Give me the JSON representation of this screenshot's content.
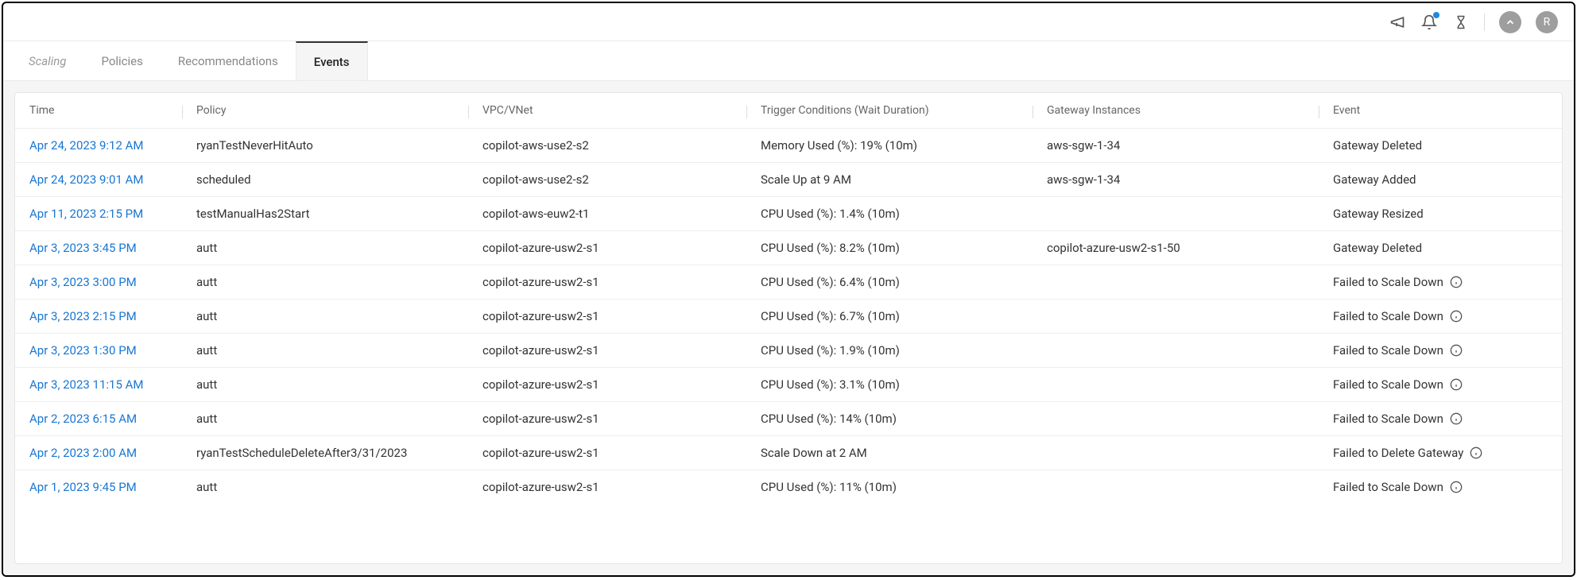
{
  "topbar": {
    "avatar_letter": "R"
  },
  "tabs": [
    {
      "label": "Scaling",
      "active": false,
      "italic": true
    },
    {
      "label": "Policies",
      "active": false,
      "italic": false
    },
    {
      "label": "Recommendations",
      "active": false,
      "italic": false
    },
    {
      "label": "Events",
      "active": true,
      "italic": false
    }
  ],
  "columns": {
    "time": "Time",
    "policy": "Policy",
    "vpc": "VPC/VNet",
    "trigger": "Trigger Conditions (Wait Duration)",
    "gateway": "Gateway Instances",
    "event": "Event"
  },
  "rows": [
    {
      "time": "Apr 24, 2023 9:12 AM",
      "policy": "ryanTestNeverHitAuto",
      "vpc": "copilot-aws-use2-s2",
      "trigger": "Memory Used (%): 19% (10m)",
      "gateway": "aws-sgw-1-34",
      "event": "Gateway Deleted",
      "info": false
    },
    {
      "time": "Apr 24, 2023 9:01 AM",
      "policy": "scheduled",
      "vpc": "copilot-aws-use2-s2",
      "trigger": "Scale Up at 9 AM",
      "gateway": "aws-sgw-1-34",
      "event": "Gateway Added",
      "info": false
    },
    {
      "time": "Apr 11, 2023 2:15 PM",
      "policy": "testManualHas2Start",
      "vpc": "copilot-aws-euw2-t1",
      "trigger": "CPU Used (%): 1.4% (10m)",
      "gateway": "",
      "event": "Gateway Resized",
      "info": false
    },
    {
      "time": "Apr 3, 2023 3:45 PM",
      "policy": "autt",
      "vpc": "copilot-azure-usw2-s1",
      "trigger": "CPU Used (%): 8.2% (10m)",
      "gateway": "copilot-azure-usw2-s1-50",
      "event": "Gateway Deleted",
      "info": false
    },
    {
      "time": "Apr 3, 2023 3:00 PM",
      "policy": "autt",
      "vpc": "copilot-azure-usw2-s1",
      "trigger": "CPU Used (%): 6.4% (10m)",
      "gateway": "",
      "event": "Failed to Scale Down",
      "info": true
    },
    {
      "time": "Apr 3, 2023 2:15 PM",
      "policy": "autt",
      "vpc": "copilot-azure-usw2-s1",
      "trigger": "CPU Used (%): 6.7% (10m)",
      "gateway": "",
      "event": "Failed to Scale Down",
      "info": true
    },
    {
      "time": "Apr 3, 2023 1:30 PM",
      "policy": "autt",
      "vpc": "copilot-azure-usw2-s1",
      "trigger": "CPU Used (%): 1.9% (10m)",
      "gateway": "",
      "event": "Failed to Scale Down",
      "info": true
    },
    {
      "time": "Apr 3, 2023 11:15 AM",
      "policy": "autt",
      "vpc": "copilot-azure-usw2-s1",
      "trigger": "CPU Used (%): 3.1% (10m)",
      "gateway": "",
      "event": "Failed to Scale Down",
      "info": true
    },
    {
      "time": "Apr 2, 2023 6:15 AM",
      "policy": "autt",
      "vpc": "copilot-azure-usw2-s1",
      "trigger": "CPU Used (%): 14% (10m)",
      "gateway": "",
      "event": "Failed to Scale Down",
      "info": true
    },
    {
      "time": "Apr 2, 2023 2:00 AM",
      "policy": "ryanTestScheduleDeleteAfter3/31/2023",
      "vpc": "copilot-azure-usw2-s1",
      "trigger": "Scale Down at 2 AM",
      "gateway": "",
      "event": "Failed to Delete Gateway",
      "info": true
    },
    {
      "time": "Apr 1, 2023 9:45 PM",
      "policy": "autt",
      "vpc": "copilot-azure-usw2-s1",
      "trigger": "CPU Used (%): 11% (10m)",
      "gateway": "",
      "event": "Failed to Scale Down",
      "info": true
    }
  ],
  "colors": {
    "link": "#1976d2",
    "border": "#eaeaea",
    "muted": "#888",
    "bg_panel": "#f5f5f5"
  }
}
